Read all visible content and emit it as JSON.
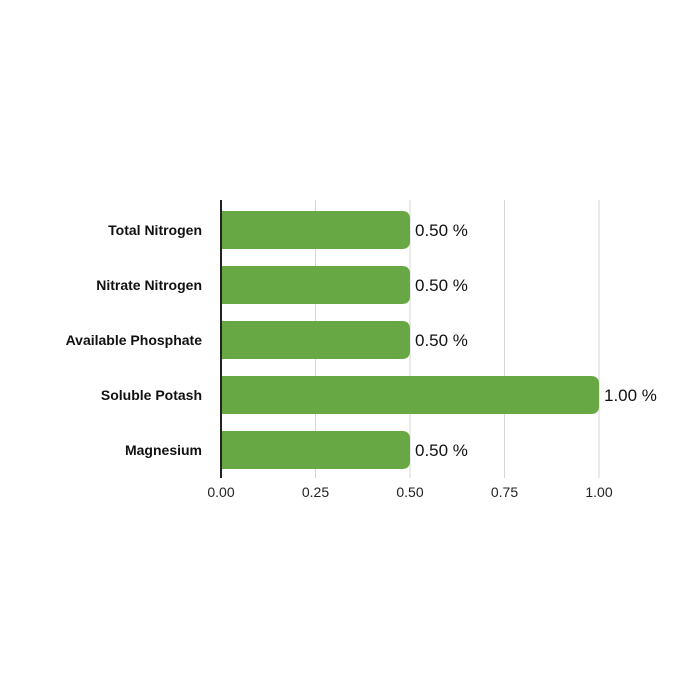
{
  "chart_data": {
    "type": "bar",
    "orientation": "horizontal",
    "categories": [
      "Total Nitrogen",
      "Nitrate Nitrogen",
      "Available Phosphate",
      "Soluble Potash",
      "Magnesium"
    ],
    "values": [
      0.5,
      0.5,
      0.5,
      1.0,
      0.5
    ],
    "data_labels": [
      "0.50 %",
      "0.50 %",
      "0.50 %",
      "1.00 %",
      "0.50 %"
    ],
    "xlim": [
      0,
      1
    ],
    "x_ticks": [
      "0.00",
      "0.25",
      "0.50",
      "0.75",
      "1.00"
    ],
    "grid": "vertical",
    "bar_color": "#67a844",
    "title": "",
    "xlabel": "",
    "ylabel": ""
  }
}
